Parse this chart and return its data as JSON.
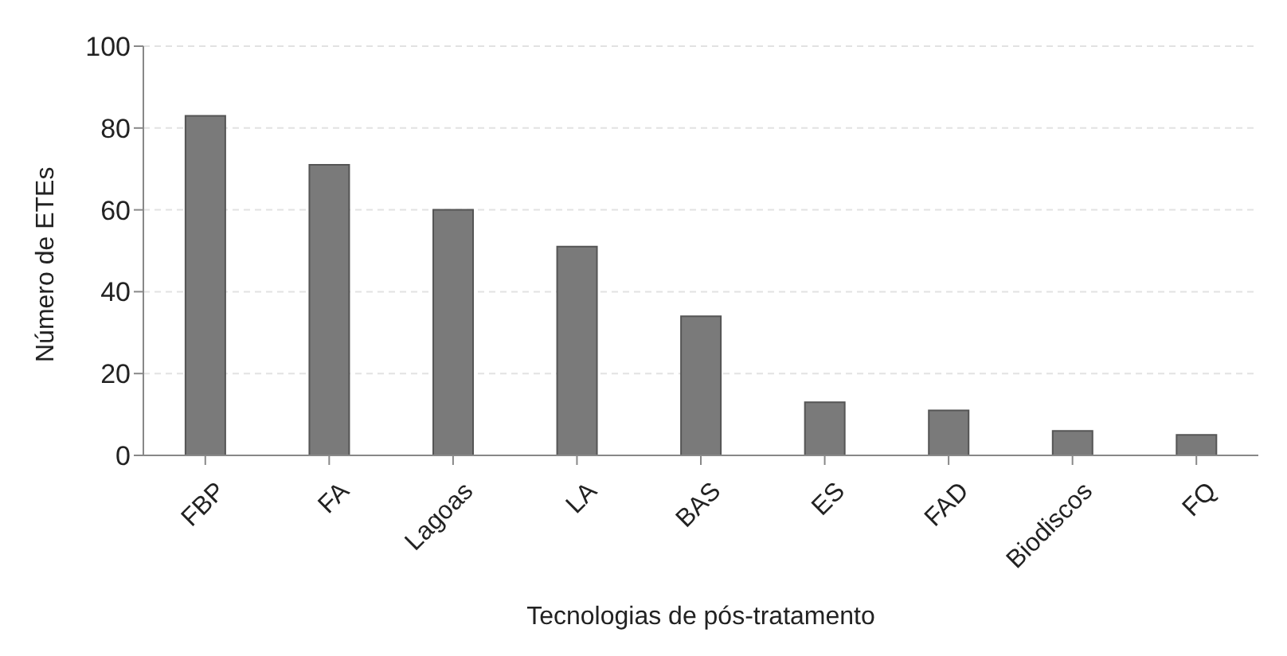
{
  "chart_data": {
    "type": "bar",
    "xlabel": "Tecnologias de pós-tratamento",
    "ylabel": "Número de ETEs",
    "categories": [
      "FBP",
      "FA",
      "Lagoas",
      "LA",
      "BAS",
      "ES",
      "FAD",
      "Biodiscos",
      "FQ"
    ],
    "values": [
      83,
      71,
      60,
      51,
      34,
      13,
      11,
      6,
      5
    ],
    "color": "#7a7a7a",
    "ylim": [
      0,
      100
    ],
    "yticks": [
      0,
      20,
      40,
      60,
      80,
      100
    ],
    "grid": "y"
  }
}
